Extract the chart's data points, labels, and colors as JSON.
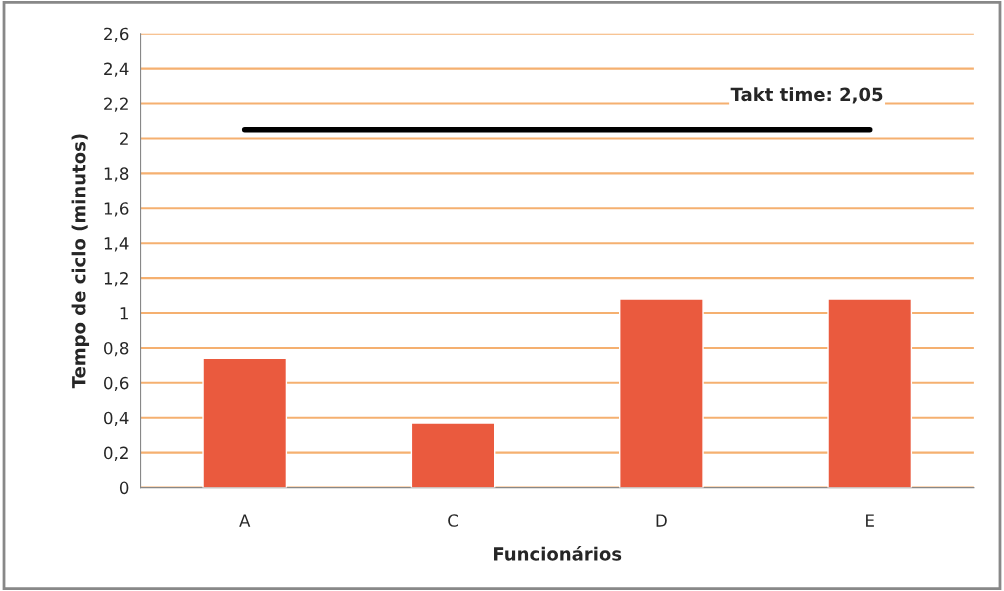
{
  "chart_data": {
    "type": "bar",
    "xlabel": "Funcionários",
    "ylabel": "Tempo de ciclo (minutos)",
    "categories": [
      "A",
      "C",
      "D",
      "E"
    ],
    "series": [
      {
        "color": "#ea5a3e",
        "values": [
          0.74,
          0.37,
          1.08,
          1.08
        ]
      },
      {
        "type": "line",
        "color": "#000000",
        "values": [
          2.05,
          2.05,
          2.05,
          2.05
        ]
      }
    ],
    "ylim": [
      0,
      2.6
    ],
    "yticks": [
      0,
      {
        "value": 0.2,
        "label": "0,2"
      },
      {
        "value": 0.4,
        "label": "0,4"
      },
      {
        "value": 0.6,
        "label": "0,6"
      },
      {
        "value": 0.8,
        "label": "0,8"
      },
      1,
      {
        "value": 1.2,
        "label": "1,2"
      },
      {
        "value": 1.4,
        "label": "1,4"
      },
      {
        "value": 1.6,
        "label": "1,6"
      },
      {
        "value": 1.8,
        "label": "1,8"
      },
      2,
      {
        "value": 2.2,
        "label": "2,2"
      },
      {
        "value": 2.4,
        "label": "2,4"
      },
      {
        "value": 2.6,
        "label": "2,6"
      }
    ],
    "grid": "y",
    "annotations": [
      {
        "text": "Takt time: 2,05",
        "x": "E",
        "y": 2.05
      }
    ]
  }
}
